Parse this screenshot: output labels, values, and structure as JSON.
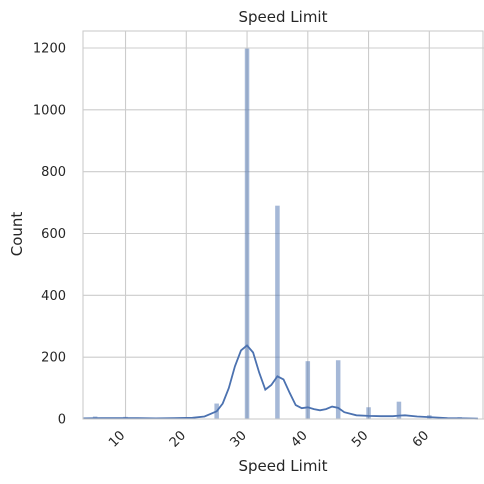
{
  "chart_data": {
    "type": "histogram",
    "title": "Speed Limit",
    "xlabel": "Speed Limit",
    "ylabel": "Count",
    "xlim": [
      3,
      69
    ],
    "ylim": [
      0,
      1255
    ],
    "x_ticks": [
      10,
      20,
      30,
      40,
      50,
      60
    ],
    "x_tick_labels": [
      "10",
      "20",
      "30",
      "40",
      "50",
      "60"
    ],
    "x_tick_rotation": 45,
    "y_ticks": [
      0,
      200,
      400,
      600,
      800,
      1000,
      1200
    ],
    "y_tick_labels": [
      "0",
      "200",
      "400",
      "600",
      "800",
      "1000",
      "1200"
    ],
    "grid": true,
    "color": "#4c72b0",
    "bins": [
      {
        "x": 5,
        "count": 8
      },
      {
        "x": 10,
        "count": 7
      },
      {
        "x": 15,
        "count": 4
      },
      {
        "x": 20,
        "count": 5
      },
      {
        "x": 25,
        "count": 50
      },
      {
        "x": 30,
        "count": 1198
      },
      {
        "x": 35,
        "count": 690
      },
      {
        "x": 40,
        "count": 187
      },
      {
        "x": 45,
        "count": 190
      },
      {
        "x": 50,
        "count": 38
      },
      {
        "x": 55,
        "count": 56
      },
      {
        "x": 60,
        "count": 12
      },
      {
        "x": 65,
        "count": 6
      }
    ],
    "kde": [
      [
        3,
        2
      ],
      [
        6,
        3
      ],
      [
        9,
        3
      ],
      [
        12,
        3
      ],
      [
        15,
        2
      ],
      [
        18,
        3
      ],
      [
        21,
        4
      ],
      [
        23,
        8
      ],
      [
        25,
        25
      ],
      [
        26,
        50
      ],
      [
        27,
        100
      ],
      [
        28,
        170
      ],
      [
        29,
        222
      ],
      [
        30,
        238
      ],
      [
        31,
        215
      ],
      [
        32,
        150
      ],
      [
        33,
        95
      ],
      [
        34,
        110
      ],
      [
        35,
        138
      ],
      [
        36,
        128
      ],
      [
        37,
        85
      ],
      [
        38,
        45
      ],
      [
        39,
        35
      ],
      [
        40,
        38
      ],
      [
        41,
        32
      ],
      [
        42,
        28
      ],
      [
        43,
        32
      ],
      [
        44,
        40
      ],
      [
        45,
        36
      ],
      [
        46,
        22
      ],
      [
        48,
        12
      ],
      [
        50,
        10
      ],
      [
        52,
        9
      ],
      [
        54,
        9
      ],
      [
        55,
        11
      ],
      [
        56,
        12
      ],
      [
        58,
        8
      ],
      [
        60,
        6
      ],
      [
        63,
        3
      ],
      [
        66,
        2
      ],
      [
        68,
        1
      ]
    ]
  }
}
